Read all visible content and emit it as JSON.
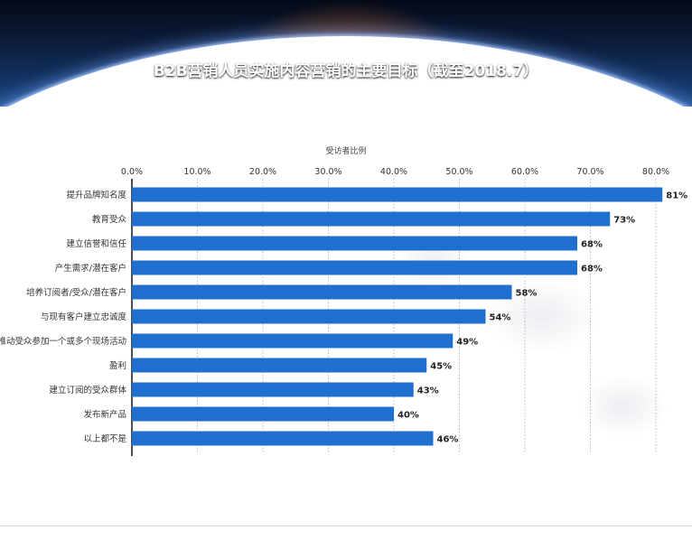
{
  "title": "B2B营销人员实施内容营销的主要目标（截至2018.7）",
  "chart_data": {
    "type": "bar",
    "orientation": "horizontal",
    "title": "B2B营销人员实施内容营销的主要目标（截至2018.7）",
    "xlabel": "受访者比例",
    "ylabel": "",
    "xlim": [
      0,
      80
    ],
    "x_ticks": [
      "0.0%",
      "10.0%",
      "20.0%",
      "30.0%",
      "40.0%",
      "50.0%",
      "60.0%",
      "70.0%",
      "80.0%"
    ],
    "grid": true,
    "categories": [
      "提升品牌知名度",
      "教育受众",
      "建立信誉和信任",
      "产生需求/潜在客户",
      "培养订阅者/受众/潜在客户",
      "与现有客户建立忠诚度",
      "推动受众参加一个或多个现场活动",
      "盈利",
      "建立订阅的受众群体",
      "发布新产品",
      "以上都不是"
    ],
    "values": [
      81,
      73,
      68,
      68,
      58,
      54,
      49,
      45,
      43,
      40,
      46
    ],
    "value_labels": [
      "81%",
      "73%",
      "68%",
      "68%",
      "58%",
      "54%",
      "49%",
      "45%",
      "43%",
      "40%",
      "46%"
    ],
    "bar_color": "#1f6fcf"
  }
}
